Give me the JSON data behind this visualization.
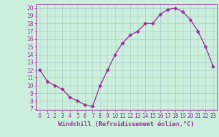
{
  "x": [
    0,
    1,
    2,
    3,
    4,
    5,
    6,
    7,
    8,
    9,
    10,
    11,
    12,
    13,
    14,
    15,
    16,
    17,
    18,
    19,
    20,
    21,
    22,
    23
  ],
  "y": [
    12,
    10.5,
    10,
    9.5,
    8.5,
    8,
    7.5,
    7.3,
    10,
    12,
    14,
    15.5,
    16.5,
    17,
    18,
    18,
    19.2,
    19.8,
    20,
    19.5,
    18.5,
    17,
    15,
    12.5
  ],
  "line_color": "#993399",
  "marker": "D",
  "marker_size": 2.5,
  "bg_color": "#cceedd",
  "grid_color": "#aacccc",
  "xlabel": "Windchill (Refroidissement éolien,°C)",
  "xlabel_color": "#993399",
  "tick_color": "#993399",
  "xlim": [
    -0.5,
    23.5
  ],
  "ylim": [
    6.8,
    20.5
  ],
  "yticks": [
    7,
    8,
    9,
    10,
    11,
    12,
    13,
    14,
    15,
    16,
    17,
    18,
    19,
    20
  ],
  "xticks": [
    0,
    1,
    2,
    3,
    4,
    5,
    6,
    7,
    8,
    9,
    10,
    11,
    12,
    13,
    14,
    15,
    16,
    17,
    18,
    19,
    20,
    21,
    22,
    23
  ],
  "tick_fontsize": 5.5,
  "label_fontsize": 6.5,
  "linewidth": 1.0
}
